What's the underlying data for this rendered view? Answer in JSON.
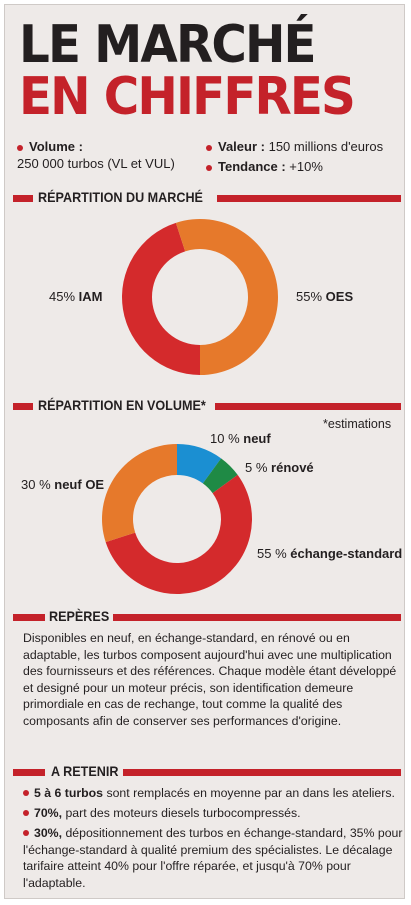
{
  "header": {
    "title_line1": "LE MARCHÉ",
    "title_line2": "EN CHIFFRES"
  },
  "facts": {
    "volume_label": "Volume :",
    "volume_value": "250 000 turbos (VL et VUL)",
    "valeur_label": "Valeur :",
    "valeur_value": "150 millions d'euros",
    "tendance_label": "Tendance :",
    "tendance_value": "+10%"
  },
  "sections": {
    "repartition_marche": "RÉPARTITION DU MARCHÉ",
    "repartition_volume": "RÉPARTITION  EN VOLUME*",
    "estimations_note": "*estimations",
    "reperes": "REPÈRES",
    "a_retenir": "A RETENIR"
  },
  "chart_data": [
    {
      "type": "pie",
      "donut": true,
      "title": "RÉPARTITION DU MARCHÉ",
      "slices": [
        {
          "pct_label": "45%",
          "name": "IAM",
          "value": 45,
          "color": "#d42a2c"
        },
        {
          "pct_label": "55%",
          "name": "OES",
          "value": 55,
          "color": "#e6792b"
        }
      ]
    },
    {
      "type": "pie",
      "donut": true,
      "title": "RÉPARTITION  EN VOLUME*",
      "slices": [
        {
          "pct_label": "10 %",
          "name": "neuf",
          "value": 10,
          "color": "#1b8fd2"
        },
        {
          "pct_label": "5 %",
          "name": "rénové",
          "value": 5,
          "color": "#1f8a45"
        },
        {
          "pct_label": "55 %",
          "name": "échange-standard",
          "value": 55,
          "color": "#d42a2c"
        },
        {
          "pct_label": "30 %",
          "name": "neuf OE",
          "value": 30,
          "color": "#e6792b"
        }
      ]
    }
  ],
  "reperes_text": "Disponibles en neuf, en échange-standard, en rénové ou en adaptable, les turbos composent aujourd'hui avec une multiplication des fournisseurs et des références. Chaque modèle étant développé et designé pour un moteur précis, son identification demeure primordiale en cas de rechange, tout comme la qualité des composants afin de conserver ses performances d'origine.",
  "retenir": [
    {
      "bold": "5 à 6 turbos",
      "text": " sont remplacés en moyenne par an dans les ateliers."
    },
    {
      "bold": "70%,",
      "text": " part des moteurs diesels turbocompressés."
    },
    {
      "bold": "30%,",
      "text": " dépositionnement des turbos en échange-standard, 35% pour l'échange-standard à qualité premium des spécialistes. Le décalage tarifaire atteint 40% pour l'offre réparée, et jusqu'à 70% pour l'adaptable."
    }
  ]
}
